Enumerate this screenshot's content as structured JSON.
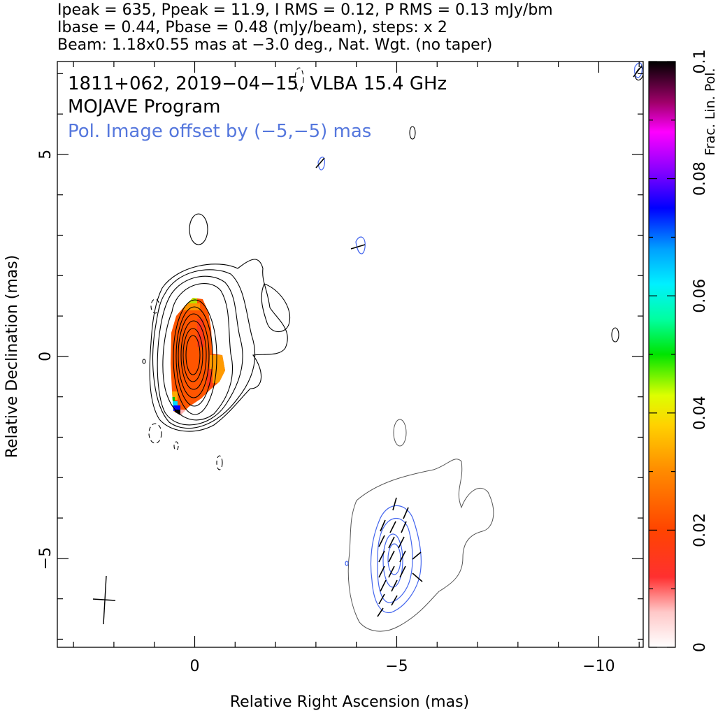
{
  "header": {
    "line1": "Ipeak = 635, Ppeak = 11.9, I RMS = 0.12, P RMS = 0.13 mJy/bm",
    "line2": "Ibase = 0.44, Pbase = 0.48 (mJy/beam), steps: x 2",
    "line3": "Beam: 1.18x0.55 mas at −3.0 deg., Nat. Wgt. (no taper)"
  },
  "annotations": {
    "source_line": "1811+062, 2019−04−15, VLBA 15.4 GHz",
    "program_line": "MOJAVE Program",
    "pol_offset_line": "Pol. Image offset by (−5,−5) mas"
  },
  "colors": {
    "annotation_blue": "#5577dd",
    "pol_contour": "#4466ee",
    "stokes_i_contour": "#000000",
    "vector": "#000000"
  },
  "chart_data": {
    "type": "contour-map",
    "xlabel": "Relative Right Ascension (mas)",
    "ylabel": "Relative Declination (mas)",
    "xlim": [
      3.4,
      -11.1
    ],
    "ylim": [
      -7.2,
      7.3
    ],
    "x_ticks": [
      0,
      -5,
      -10
    ],
    "x_tick_labels": [
      "0",
      "−5",
      "−10"
    ],
    "y_ticks": [
      5,
      0,
      -5
    ],
    "y_tick_labels": [
      "5",
      "0",
      "−5"
    ],
    "colorbar": {
      "label": "Frac. Lin. Pol.",
      "range": [
        0,
        0.1
      ],
      "ticks": [
        0,
        0.02,
        0.04,
        0.06,
        0.08,
        0.1
      ],
      "tick_labels": [
        "0",
        "0.02",
        "0.04",
        "0.06",
        "0.08",
        "0.1"
      ]
    },
    "beam": {
      "major_mas": 1.18,
      "minor_mas": 0.55,
      "pa_deg": -3.0,
      "center": [
        2.2,
        -6.1
      ]
    },
    "stokes_i_peak_mJy": 635,
    "core_position": [
      0,
      0
    ],
    "polarized_image_offset": [
      -5,
      -5
    ],
    "fractional_pol_core_approx": 0.025
  }
}
